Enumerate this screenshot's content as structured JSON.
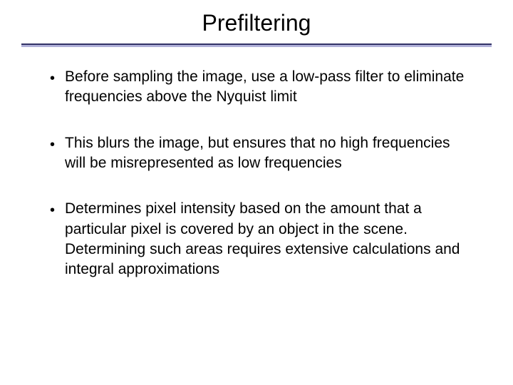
{
  "slide": {
    "title": "Prefiltering",
    "bullets": [
      {
        "text": "Before sampling the image, use a low-pass filter to eliminate frequencies above the Nyquist limit"
      },
      {
        "text": "This blurs the image, but ensures that no high frequencies will be misrepresented as low frequencies"
      },
      {
        "text": "Determines pixel intensity based on the amount that a particular pixel is covered by an object in the scene. Determining such areas requires extensive calculations and integral approximations"
      }
    ],
    "colors": {
      "background": "#ffffff",
      "title_text": "#000000",
      "body_text": "#000000",
      "divider_top": "#333366",
      "divider_fill": "#b0b0d8"
    },
    "typography": {
      "title_fontsize": 32,
      "body_fontsize": 21,
      "font_family": "Tahoma, Verdana, sans-serif"
    }
  }
}
